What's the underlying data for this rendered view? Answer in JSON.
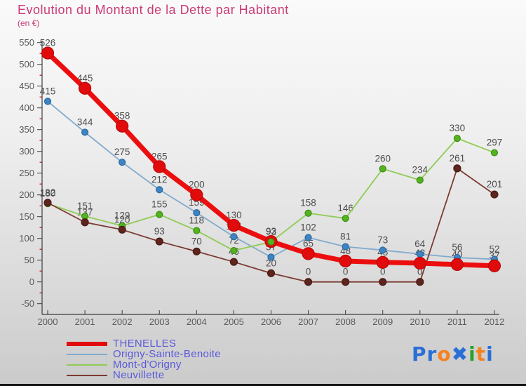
{
  "title": "Evolution du Montant de la Dette par Habitant",
  "subtitle": "(en €)",
  "colors": {
    "title": "#cb3b76",
    "legend_text": "#5959d9",
    "axis": "#3c3c3c",
    "tick_label": "#5a5a5a",
    "data_label": "#4d4d4d",
    "minor_tick": "#cc1111"
  },
  "chart_data": {
    "type": "line",
    "title": "Evolution du Montant de la Dette par Habitant",
    "subtitle": "(en €)",
    "x": [
      2000,
      2001,
      2002,
      2003,
      2004,
      2005,
      2006,
      2007,
      2008,
      2009,
      2010,
      2011,
      2012
    ],
    "series": [
      {
        "name": "THENELLES",
        "values": [
          526,
          445,
          358,
          265,
          200,
          130,
          93,
          65,
          48,
          45,
          43,
          40,
          37
        ],
        "color": "#ec0e0e",
        "dot": "#e20b0b",
        "dot_stroke": "#b80808",
        "line_width": 7,
        "marker_r": 8.5,
        "thick": true
      },
      {
        "name": "Origny-Sainte-Benoite",
        "values": [
          415,
          344,
          275,
          212,
          159,
          104,
          57,
          102,
          81,
          73,
          64,
          56,
          52
        ],
        "color": "#82aacd",
        "dot": "#3d84c4",
        "dot_stroke": "#2e689c",
        "line_width": 1.8,
        "marker_r": 4.5,
        "thick": false
      },
      {
        "name": "Mont-d'Origny",
        "values": [
          180,
          151,
          129,
          155,
          118,
          72,
          92,
          158,
          146,
          260,
          234,
          330,
          297
        ],
        "color": "#8fcc55",
        "dot": "#52b41e",
        "dot_stroke": "#3f8c17",
        "line_width": 1.8,
        "marker_r": 4.5,
        "thick": false
      },
      {
        "name": "Neuvillette",
        "values": [
          182,
          137,
          120,
          93,
          70,
          46,
          20,
          0,
          0,
          0,
          0,
          261,
          201
        ],
        "color": "#7c3a32",
        "dot": "#5e241d",
        "dot_stroke": "#471a14",
        "line_width": 1.8,
        "marker_r": 5,
        "thick": false
      }
    ],
    "ylim": [
      -50,
      550
    ],
    "yticks": [
      -50,
      0,
      50,
      100,
      150,
      200,
      250,
      300,
      350,
      400,
      450,
      500,
      550
    ],
    "grid": false,
    "legend_position": "bottom-left",
    "draw_order": [
      1,
      2,
      3,
      0
    ],
    "topmost_markers": [
      {
        "series": 2,
        "index": 6
      }
    ]
  },
  "logo": {
    "text": "Proxiti",
    "letters": [
      {
        "ch": "P",
        "color": "#2a6fd6"
      },
      {
        "ch": "r",
        "color": "#2a6fd6"
      },
      {
        "ch": "o",
        "color": "#f58220"
      },
      {
        "ch": "✖",
        "color": "#2a6fd6"
      },
      {
        "ch": "i",
        "color": "#2aa12a"
      },
      {
        "ch": "t",
        "color": "#f58220"
      },
      {
        "ch": "i",
        "color": "#2a6fd6"
      }
    ]
  }
}
